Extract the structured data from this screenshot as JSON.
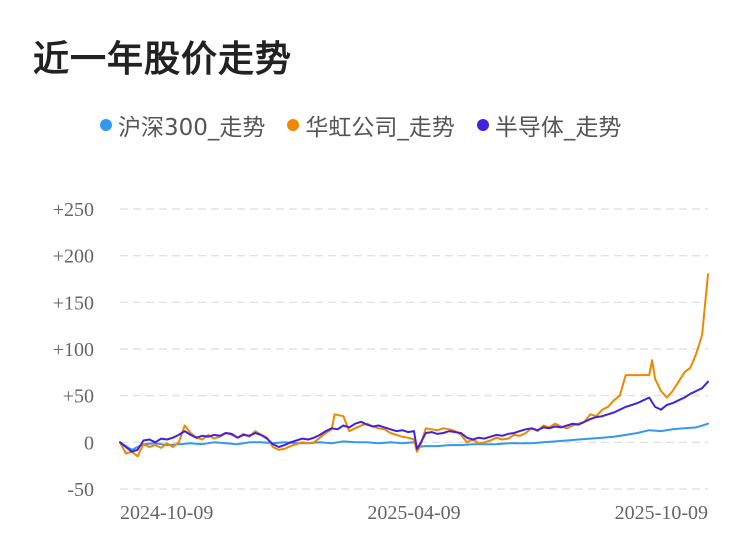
{
  "title": "近一年股价走势",
  "colors": {
    "hs300": "#3399ee",
    "huahong": "#ee8800",
    "semi": "#4422dd",
    "grid": "#dddddd"
  },
  "legend": [
    {
      "label": "沪深300_走势",
      "color": "#3399ee"
    },
    {
      "label": "华虹公司_走势",
      "color": "#ee8800"
    },
    {
      "label": "半导体_走势",
      "color": "#4422dd"
    }
  ],
  "chart_data": {
    "type": "line",
    "title": "近一年股价走势",
    "xlabel": "",
    "ylabel": "",
    "ylim": [
      -50,
      250
    ],
    "grid": true,
    "legend_position": "top",
    "y_ticks": [
      "+250",
      "+200",
      "+150",
      "+100",
      "+50",
      "0",
      "-50"
    ],
    "y_tick_values": [
      250,
      200,
      150,
      100,
      50,
      0,
      -50
    ],
    "x_ticks": [
      "2024-10-09",
      "2025-04-09",
      "2025-10-09"
    ],
    "x_tick_values": [
      0,
      0.5,
      1
    ],
    "series": [
      {
        "name": "沪深300_走势",
        "key": "hs300",
        "points": [
          [
            0,
            0
          ],
          [
            0.02,
            -8
          ],
          [
            0.04,
            -2
          ],
          [
            0.06,
            -1
          ],
          [
            0.08,
            -3
          ],
          [
            0.1,
            -2
          ],
          [
            0.12,
            -1
          ],
          [
            0.14,
            -2
          ],
          [
            0.16,
            0
          ],
          [
            0.18,
            -1
          ],
          [
            0.2,
            -2
          ],
          [
            0.22,
            0
          ],
          [
            0.24,
            0
          ],
          [
            0.26,
            -1
          ],
          [
            0.28,
            0
          ],
          [
            0.3,
            -1
          ],
          [
            0.32,
            -1
          ],
          [
            0.34,
            0
          ],
          [
            0.36,
            -1
          ],
          [
            0.38,
            1
          ],
          [
            0.4,
            0
          ],
          [
            0.42,
            0
          ],
          [
            0.44,
            -1
          ],
          [
            0.46,
            0
          ],
          [
            0.48,
            -1
          ],
          [
            0.5,
            0
          ],
          [
            0.505,
            -5
          ],
          [
            0.52,
            -4
          ],
          [
            0.54,
            -4
          ],
          [
            0.56,
            -3
          ],
          [
            0.58,
            -3
          ],
          [
            0.6,
            -2
          ],
          [
            0.62,
            -2
          ],
          [
            0.64,
            -2
          ],
          [
            0.66,
            -1
          ],
          [
            0.68,
            -1
          ],
          [
            0.7,
            -1
          ],
          [
            0.72,
            0
          ],
          [
            0.74,
            1
          ],
          [
            0.76,
            2
          ],
          [
            0.78,
            3
          ],
          [
            0.8,
            4
          ],
          [
            0.82,
            5
          ],
          [
            0.84,
            6
          ],
          [
            0.86,
            8
          ],
          [
            0.88,
            10
          ],
          [
            0.9,
            13
          ],
          [
            0.92,
            12
          ],
          [
            0.94,
            14
          ],
          [
            0.96,
            15
          ],
          [
            0.98,
            16
          ],
          [
            1.0,
            20
          ]
        ]
      },
      {
        "name": "华虹公司_走势",
        "key": "huahong",
        "points": [
          [
            0,
            0
          ],
          [
            0.01,
            -12
          ],
          [
            0.02,
            -10
          ],
          [
            0.03,
            -15
          ],
          [
            0.04,
            -2
          ],
          [
            0.05,
            -5
          ],
          [
            0.06,
            -3
          ],
          [
            0.07,
            -6
          ],
          [
            0.08,
            -1
          ],
          [
            0.09,
            -5
          ],
          [
            0.1,
            0
          ],
          [
            0.11,
            18
          ],
          [
            0.12,
            10
          ],
          [
            0.13,
            5
          ],
          [
            0.14,
            3
          ],
          [
            0.15,
            8
          ],
          [
            0.16,
            4
          ],
          [
            0.17,
            6
          ],
          [
            0.18,
            10
          ],
          [
            0.19,
            8
          ],
          [
            0.2,
            5
          ],
          [
            0.21,
            9
          ],
          [
            0.22,
            6
          ],
          [
            0.23,
            12
          ],
          [
            0.24,
            8
          ],
          [
            0.25,
            5
          ],
          [
            0.26,
            -5
          ],
          [
            0.27,
            -8
          ],
          [
            0.28,
            -7
          ],
          [
            0.29,
            -4
          ],
          [
            0.3,
            -2
          ],
          [
            0.31,
            0
          ],
          [
            0.32,
            -1
          ],
          [
            0.33,
            0
          ],
          [
            0.34,
            5
          ],
          [
            0.35,
            10
          ],
          [
            0.36,
            14
          ],
          [
            0.365,
            30
          ],
          [
            0.38,
            28
          ],
          [
            0.39,
            12
          ],
          [
            0.4,
            15
          ],
          [
            0.41,
            18
          ],
          [
            0.42,
            20
          ],
          [
            0.43,
            17
          ],
          [
            0.44,
            15
          ],
          [
            0.45,
            14
          ],
          [
            0.46,
            10
          ],
          [
            0.47,
            8
          ],
          [
            0.48,
            6
          ],
          [
            0.49,
            5
          ],
          [
            0.5,
            3
          ],
          [
            0.505,
            -10
          ],
          [
            0.51,
            -5
          ],
          [
            0.52,
            15
          ],
          [
            0.53,
            14
          ],
          [
            0.54,
            13
          ],
          [
            0.55,
            15
          ],
          [
            0.56,
            14
          ],
          [
            0.57,
            12
          ],
          [
            0.58,
            8
          ],
          [
            0.59,
            0
          ],
          [
            0.6,
            3
          ],
          [
            0.61,
            -1
          ],
          [
            0.62,
            0
          ],
          [
            0.63,
            2
          ],
          [
            0.64,
            5
          ],
          [
            0.65,
            3
          ],
          [
            0.66,
            4
          ],
          [
            0.67,
            8
          ],
          [
            0.68,
            7
          ],
          [
            0.69,
            10
          ],
          [
            0.7,
            15
          ],
          [
            0.71,
            12
          ],
          [
            0.72,
            18
          ],
          [
            0.73,
            16
          ],
          [
            0.74,
            20
          ],
          [
            0.75,
            17
          ],
          [
            0.76,
            15
          ],
          [
            0.77,
            18
          ],
          [
            0.78,
            20
          ],
          [
            0.79,
            22
          ],
          [
            0.8,
            30
          ],
          [
            0.81,
            28
          ],
          [
            0.82,
            35
          ],
          [
            0.83,
            38
          ],
          [
            0.84,
            45
          ],
          [
            0.85,
            50
          ],
          [
            0.86,
            72
          ],
          [
            0.87,
            72
          ],
          [
            0.88,
            72
          ],
          [
            0.89,
            72
          ],
          [
            0.9,
            72
          ],
          [
            0.905,
            88
          ],
          [
            0.91,
            68
          ],
          [
            0.92,
            55
          ],
          [
            0.93,
            48
          ],
          [
            0.94,
            55
          ],
          [
            0.95,
            65
          ],
          [
            0.96,
            75
          ],
          [
            0.97,
            80
          ],
          [
            0.98,
            95
          ],
          [
            0.99,
            115
          ],
          [
            1.0,
            180
          ]
        ]
      },
      {
        "name": "半导体_走势",
        "key": "semi",
        "points": [
          [
            0,
            0
          ],
          [
            0.02,
            -10
          ],
          [
            0.03,
            -8
          ],
          [
            0.04,
            2
          ],
          [
            0.05,
            3
          ],
          [
            0.06,
            0
          ],
          [
            0.07,
            4
          ],
          [
            0.08,
            3
          ],
          [
            0.09,
            5
          ],
          [
            0.1,
            8
          ],
          [
            0.11,
            12
          ],
          [
            0.12,
            8
          ],
          [
            0.13,
            5
          ],
          [
            0.14,
            7
          ],
          [
            0.15,
            6
          ],
          [
            0.16,
            8
          ],
          [
            0.17,
            7
          ],
          [
            0.18,
            10
          ],
          [
            0.19,
            9
          ],
          [
            0.2,
            5
          ],
          [
            0.21,
            8
          ],
          [
            0.22,
            7
          ],
          [
            0.23,
            10
          ],
          [
            0.24,
            8
          ],
          [
            0.25,
            4
          ],
          [
            0.26,
            -2
          ],
          [
            0.27,
            -5
          ],
          [
            0.28,
            -3
          ],
          [
            0.29,
            0
          ],
          [
            0.3,
            2
          ],
          [
            0.31,
            4
          ],
          [
            0.32,
            3
          ],
          [
            0.33,
            5
          ],
          [
            0.34,
            8
          ],
          [
            0.35,
            12
          ],
          [
            0.36,
            15
          ],
          [
            0.37,
            14
          ],
          [
            0.38,
            18
          ],
          [
            0.39,
            16
          ],
          [
            0.4,
            20
          ],
          [
            0.41,
            22
          ],
          [
            0.42,
            19
          ],
          [
            0.43,
            17
          ],
          [
            0.44,
            18
          ],
          [
            0.45,
            16
          ],
          [
            0.46,
            14
          ],
          [
            0.47,
            12
          ],
          [
            0.48,
            13
          ],
          [
            0.49,
            11
          ],
          [
            0.5,
            12
          ],
          [
            0.505,
            -7
          ],
          [
            0.51,
            -2
          ],
          [
            0.52,
            10
          ],
          [
            0.53,
            11
          ],
          [
            0.54,
            9
          ],
          [
            0.55,
            10
          ],
          [
            0.56,
            12
          ],
          [
            0.57,
            11
          ],
          [
            0.58,
            10
          ],
          [
            0.59,
            5
          ],
          [
            0.6,
            3
          ],
          [
            0.61,
            5
          ],
          [
            0.62,
            4
          ],
          [
            0.63,
            6
          ],
          [
            0.64,
            8
          ],
          [
            0.65,
            7
          ],
          [
            0.66,
            9
          ],
          [
            0.67,
            10
          ],
          [
            0.68,
            12
          ],
          [
            0.69,
            14
          ],
          [
            0.7,
            15
          ],
          [
            0.71,
            13
          ],
          [
            0.72,
            16
          ],
          [
            0.73,
            15
          ],
          [
            0.74,
            17
          ],
          [
            0.75,
            16
          ],
          [
            0.76,
            18
          ],
          [
            0.77,
            20
          ],
          [
            0.78,
            19
          ],
          [
            0.79,
            22
          ],
          [
            0.8,
            25
          ],
          [
            0.81,
            27
          ],
          [
            0.82,
            28
          ],
          [
            0.83,
            30
          ],
          [
            0.84,
            32
          ],
          [
            0.85,
            35
          ],
          [
            0.86,
            38
          ],
          [
            0.87,
            40
          ],
          [
            0.88,
            42
          ],
          [
            0.89,
            45
          ],
          [
            0.9,
            48
          ],
          [
            0.91,
            38
          ],
          [
            0.92,
            35
          ],
          [
            0.93,
            40
          ],
          [
            0.94,
            42
          ],
          [
            0.95,
            45
          ],
          [
            0.96,
            48
          ],
          [
            0.97,
            52
          ],
          [
            0.98,
            55
          ],
          [
            0.99,
            58
          ],
          [
            1.0,
            65
          ]
        ]
      }
    ]
  }
}
